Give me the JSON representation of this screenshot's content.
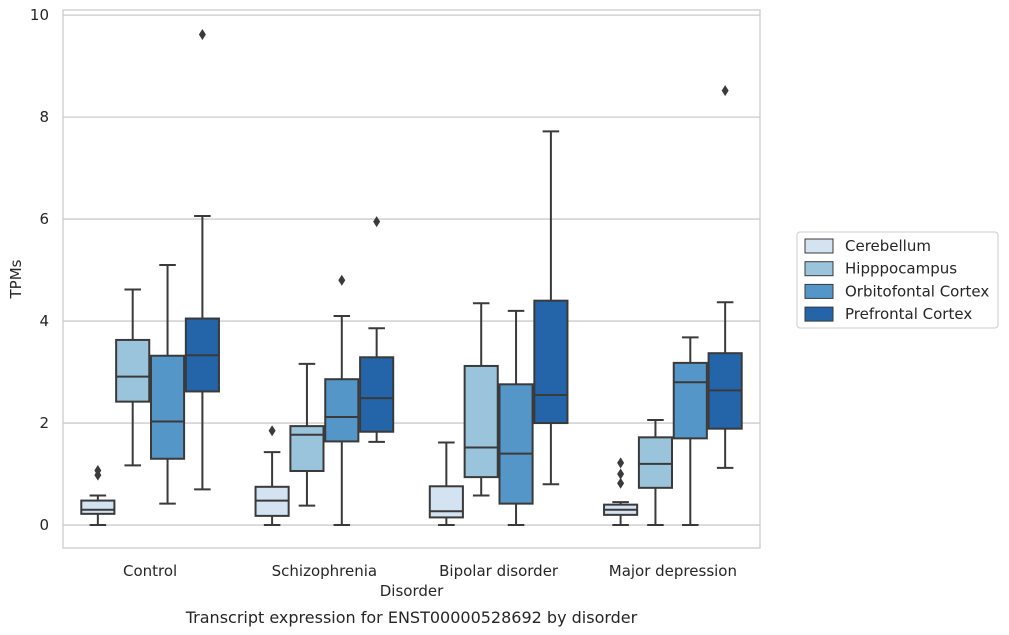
{
  "chart_data": {
    "type": "box",
    "title": "",
    "caption": "Transcript expression for ENST00000528692 by disorder",
    "xlabel": "Disorder",
    "ylabel": "TPMs",
    "ylim": [
      -0.45,
      10.1
    ],
    "yticks": [
      "0",
      "2",
      "4",
      "6",
      "8",
      "10"
    ],
    "grid": "horizontal",
    "legend_position": "right",
    "categories": [
      "Control",
      "Schizophrenia",
      "Bipolar disorder",
      "Major depression"
    ],
    "series": [
      {
        "name": "Cerebellum",
        "color": "#d4e3f1",
        "boxes": [
          {
            "whislo": 0.0,
            "q1": 0.22,
            "med": 0.3,
            "q3": 0.48,
            "whishi": 0.58,
            "fliers": [
              0.98,
              1.07
            ]
          },
          {
            "whislo": 0.0,
            "q1": 0.18,
            "med": 0.48,
            "q3": 0.75,
            "whishi": 1.43,
            "fliers": [
              1.85
            ]
          },
          {
            "whislo": 0.0,
            "q1": 0.15,
            "med": 0.27,
            "q3": 0.76,
            "whishi": 1.62,
            "fliers": []
          },
          {
            "whislo": 0.0,
            "q1": 0.2,
            "med": 0.3,
            "q3": 0.4,
            "whishi": 0.45,
            "fliers": [
              0.82,
              1.0,
              1.22
            ]
          }
        ]
      },
      {
        "name": "Hipppocampus",
        "color": "#9ac3dc",
        "boxes": [
          {
            "whislo": 1.17,
            "q1": 2.42,
            "med": 2.91,
            "q3": 3.63,
            "whishi": 4.62,
            "fliers": []
          },
          {
            "whislo": 0.38,
            "q1": 1.06,
            "med": 1.77,
            "q3": 1.94,
            "whishi": 3.16,
            "fliers": []
          },
          {
            "whislo": 0.58,
            "q1": 0.94,
            "med": 1.52,
            "q3": 3.12,
            "whishi": 4.35,
            "fliers": []
          },
          {
            "whislo": 0.0,
            "q1": 0.73,
            "med": 1.2,
            "q3": 1.72,
            "whishi": 2.06,
            "fliers": []
          }
        ]
      },
      {
        "name": "Orbitofontal Cortex",
        "color": "#5496c7",
        "boxes": [
          {
            "whislo": 0.42,
            "q1": 1.3,
            "med": 2.03,
            "q3": 3.32,
            "whishi": 5.1,
            "fliers": []
          },
          {
            "whislo": 0.0,
            "q1": 1.64,
            "med": 2.12,
            "q3": 2.86,
            "whishi": 4.1,
            "fliers": [
              4.8
            ]
          },
          {
            "whislo": 0.0,
            "q1": 0.42,
            "med": 1.4,
            "q3": 2.76,
            "whishi": 4.2,
            "fliers": []
          },
          {
            "whislo": 0.0,
            "q1": 1.7,
            "med": 2.8,
            "q3": 3.18,
            "whishi": 3.68,
            "fliers": []
          }
        ]
      },
      {
        "name": "Prefrontal Cortex",
        "color": "#2464a8",
        "boxes": [
          {
            "whislo": 0.7,
            "q1": 2.62,
            "med": 3.33,
            "q3": 4.05,
            "whishi": 6.06,
            "fliers": [
              9.62
            ]
          },
          {
            "whislo": 1.63,
            "q1": 1.83,
            "med": 2.49,
            "q3": 3.29,
            "whishi": 3.86,
            "fliers": [
              5.95
            ]
          },
          {
            "whislo": 0.8,
            "q1": 2.0,
            "med": 2.55,
            "q3": 4.4,
            "whishi": 7.72,
            "fliers": []
          },
          {
            "whislo": 1.12,
            "q1": 1.89,
            "med": 2.64,
            "q3": 3.37,
            "whishi": 4.37,
            "fliers": [
              8.52
            ]
          }
        ]
      }
    ]
  }
}
